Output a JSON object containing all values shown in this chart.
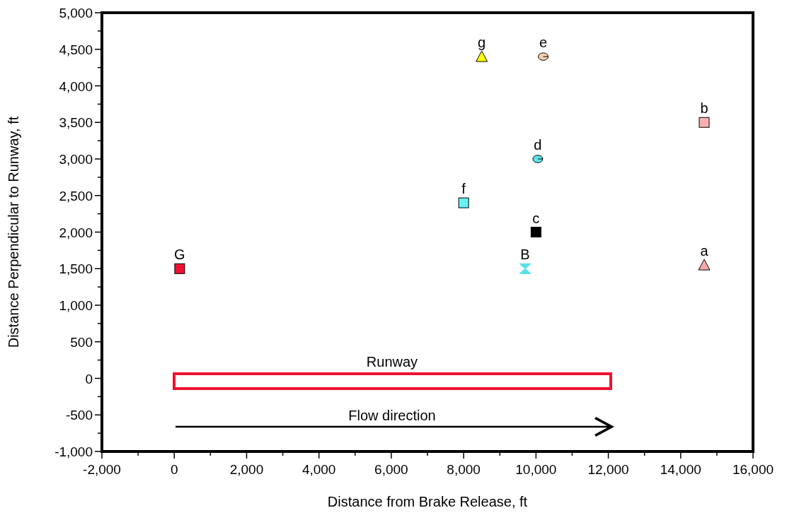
{
  "chart_data": {
    "type": "scatter",
    "xlabel": "Distance from Brake Release, ft",
    "ylabel": "Distance Perpendicular to Runway, ft",
    "xlim": [
      -2000,
      16000
    ],
    "ylim": [
      -1000,
      5000
    ],
    "xticks": [
      {
        "value": -2000,
        "label": "-2,000"
      },
      0,
      {
        "value": 2000,
        "label": "2,000"
      },
      {
        "value": 4000,
        "label": "4,000"
      },
      {
        "value": 6000,
        "label": "6,000"
      },
      {
        "value": 8000,
        "label": "8,000"
      },
      {
        "value": 10000,
        "label": "10,000"
      },
      {
        "value": 12000,
        "label": "12,000"
      },
      {
        "value": 14000,
        "label": "14,000"
      },
      {
        "value": 16000,
        "label": "16,000"
      }
    ],
    "yticks": [
      {
        "value": -1000,
        "label": "-1,000"
      },
      -500,
      0,
      500,
      {
        "value": 1000,
        "label": "1,000"
      },
      {
        "value": 1500,
        "label": "1,500"
      },
      {
        "value": 2000,
        "label": "2,000"
      },
      {
        "value": 2500,
        "label": "2,500"
      },
      {
        "value": 3000,
        "label": "3,000"
      },
      {
        "value": 3500,
        "label": "3,500"
      },
      {
        "value": 4000,
        "label": "4,000"
      },
      {
        "value": 4500,
        "label": "4,500"
      },
      {
        "value": 5000,
        "label": "5,000"
      }
    ],
    "grid": false,
    "series": [
      {
        "name": "G",
        "color": "#ee1133",
        "marker": "square",
        "x": [
          150
        ],
        "values": [
          1500
        ]
      },
      {
        "name": "B",
        "color": "#55e0e8",
        "x": [
          9700
        ],
        "values": [
          1500
        ]
      },
      {
        "name": "c",
        "color": "#000000",
        "marker": "square",
        "x": [
          10000
        ],
        "values": [
          2000
        ]
      },
      {
        "name": "f",
        "color": "#66f0f0",
        "marker": "square",
        "x": [
          8000
        ],
        "values": [
          2400
        ]
      },
      {
        "name": "d",
        "color": "#5ce8f0",
        "marker": "circle",
        "x": [
          10050
        ],
        "values": [
          3000
        ]
      },
      {
        "name": "g",
        "color": "#ffff00",
        "marker": "triangle",
        "x": [
          8500
        ],
        "values": [
          4400
        ]
      },
      {
        "name": "e",
        "color": "#f8d0b0",
        "marker": "circle",
        "x": [
          10200
        ],
        "values": [
          4400
        ]
      },
      {
        "name": "b",
        "color": "#f8b0b0",
        "marker": "square",
        "x": [
          14650
        ],
        "values": [
          3500
        ]
      },
      {
        "name": "a",
        "color": "#f8a8a8",
        "marker": "triangle",
        "x": [
          14650
        ],
        "values": [
          1550
        ]
      }
    ],
    "annotations": [
      "Runway",
      "Flow direction"
    ]
  }
}
